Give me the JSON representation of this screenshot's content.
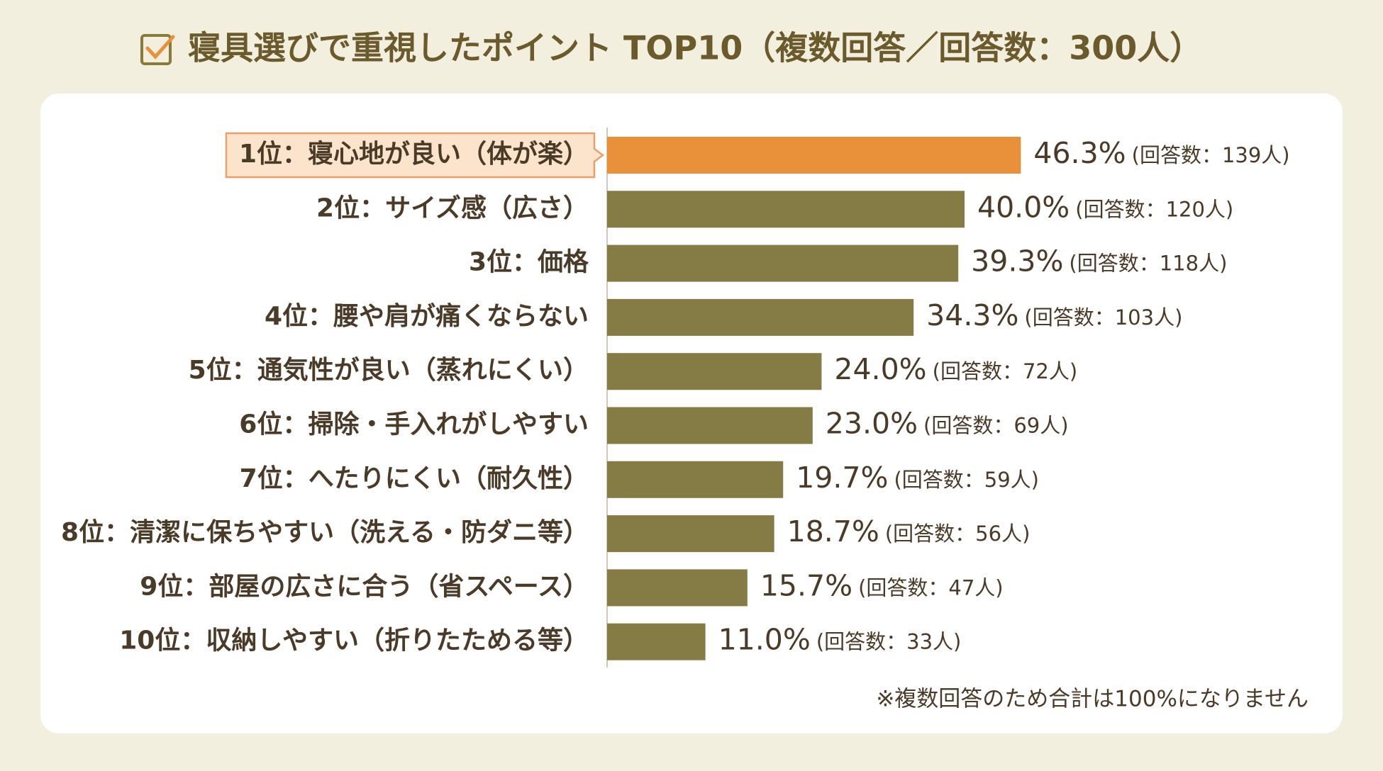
{
  "chart_data": {
    "type": "barh",
    "title": "寝具選びで重視したポイント TOP10（複数回答／回答数：300人）",
    "categories": [
      "1位：寝心地が良い（体が楽）",
      "2位：サイズ感（広さ）",
      "3位：価格",
      "4位：腰や肩が痛くならない",
      "5位：通気性が良い（蒸れにくい）",
      "6位：掃除・手入れがしやすい",
      "7位：へたりにくい（耐久性）",
      "8位：清潔に保ちやすい（洗える・防ダニ等）",
      "9位：部屋の広さに合う（省スペース）",
      "10位：収納しやすい（折りたためる等）"
    ],
    "values": [
      46.3,
      40.0,
      39.3,
      34.3,
      24.0,
      23.0,
      19.7,
      18.7,
      15.7,
      11.0
    ],
    "value_labels": [
      "46.3%",
      "40.0%",
      "39.3%",
      "34.3%",
      "24.0%",
      "23.0%",
      "19.7%",
      "18.7%",
      "15.7%",
      "11.0%"
    ],
    "count_labels": [
      "(回答数：139人)",
      "(回答数：120人)",
      "(回答数：118人)",
      "(回答数：103人)",
      "(回答数：72人)",
      "(回答数：69人)",
      "(回答数：59人)",
      "(回答数：56人)",
      "(回答数：47人)",
      "(回答数：33人)"
    ],
    "color": "#857c45",
    "highlight_color": "#e8913a",
    "highlight": 0,
    "xlim": [
      0,
      60
    ],
    "note": "※複数回答のため合計は100%になりません"
  }
}
